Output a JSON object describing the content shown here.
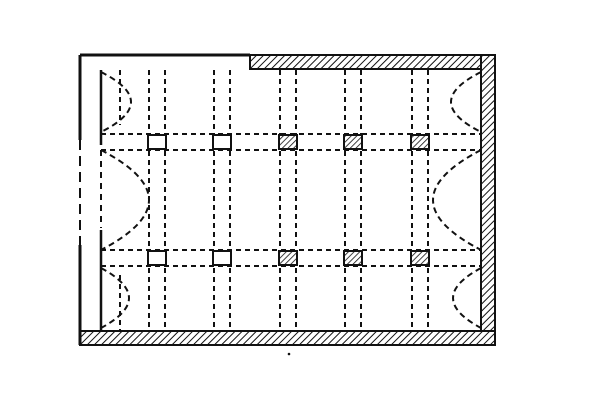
{
  "diagram": {
    "kind": "floor-plan",
    "colors": {
      "background": "#ffffff",
      "ink": "#111111",
      "hatch": "#111111"
    },
    "columns": {
      "count_per_row": 5,
      "rows": 2,
      "fill_pattern": [
        "open",
        "open",
        "hatched",
        "hatched",
        "hatched"
      ]
    },
    "icons": [
      "hatch-pattern",
      "open-column-square",
      "hatched-column-square"
    ]
  }
}
